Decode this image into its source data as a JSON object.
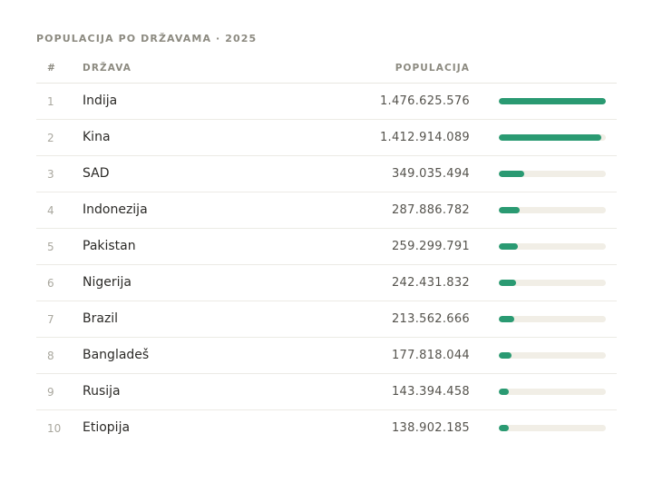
{
  "title": "POPULACIJA PO DRŽAVAMA · 2025",
  "headers": {
    "rank": "#",
    "country": "DRŽAVA",
    "population": "POPULACIJA"
  },
  "colors": {
    "bar_fill": "#2a9a72",
    "bar_track": "#f1eee6"
  },
  "max_population": 1476625576,
  "rows": [
    {
      "rank": "1",
      "country": "Indija",
      "population_label": "1.476.625.576",
      "population": 1476625576
    },
    {
      "rank": "2",
      "country": "Kina",
      "population_label": "1.412.914.089",
      "population": 1412914089
    },
    {
      "rank": "3",
      "country": "SAD",
      "population_label": "349.035.494",
      "population": 349035494
    },
    {
      "rank": "4",
      "country": "Indonezija",
      "population_label": "287.886.782",
      "population": 287886782
    },
    {
      "rank": "5",
      "country": "Pakistan",
      "population_label": "259.299.791",
      "population": 259299791
    },
    {
      "rank": "6",
      "country": "Nigerija",
      "population_label": "242.431.832",
      "population": 242431832
    },
    {
      "rank": "7",
      "country": "Brazil",
      "population_label": "213.562.666",
      "population": 213562666
    },
    {
      "rank": "8",
      "country": "Bangladeš",
      "population_label": "177.818.044",
      "population": 177818044
    },
    {
      "rank": "9",
      "country": "Rusija",
      "population_label": "143.394.458",
      "population": 143394458
    },
    {
      "rank": "10",
      "country": "Etiopija",
      "population_label": "138.902.185",
      "population": 138902185
    }
  ]
}
